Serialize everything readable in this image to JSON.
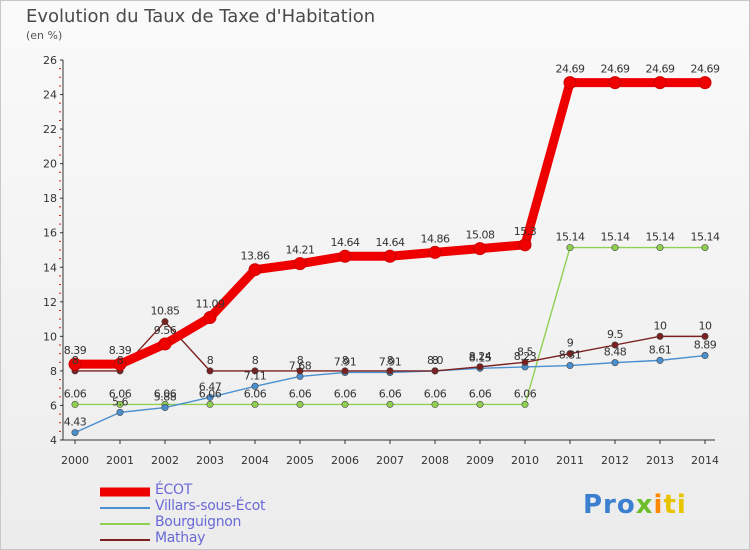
{
  "title": "Evolution du Taux de Taxe d'Habitation",
  "unit": "(en %)",
  "logo": {
    "p1": "Pro",
    "p2": "x",
    "p3": "i",
    "p4": "ti"
  },
  "chart_data": {
    "type": "line",
    "x": [
      "2000",
      "2001",
      "2002",
      "2003",
      "2004",
      "2005",
      "2006",
      "2007",
      "2008",
      "2009",
      "2010",
      "2011",
      "2012",
      "2013",
      "2014"
    ],
    "ylim": [
      4,
      26
    ],
    "yticks": [
      4,
      6,
      8,
      10,
      12,
      14,
      16,
      18,
      20,
      22,
      24,
      26
    ],
    "grid": false,
    "legend_position": "bottom-left",
    "series": [
      {
        "name": "ÉCOT",
        "color": "#ee0000",
        "values": [
          8.39,
          8.39,
          9.56,
          11.09,
          13.86,
          14.21,
          14.64,
          14.64,
          14.86,
          15.08,
          15.3,
          24.69,
          24.69,
          24.69,
          24.69
        ],
        "labels": [
          "8.39",
          "8.39",
          "9.56",
          "11.09",
          "13.86",
          "14.21",
          "14.64",
          "14.64",
          "14.86",
          "15.08",
          "15.3",
          "24.69",
          "24.69",
          "24.69",
          "24.69"
        ]
      },
      {
        "name": "Villars-sous-Écot",
        "color": "#4a90d0",
        "values": [
          4.43,
          5.6,
          5.88,
          6.47,
          7.11,
          7.68,
          7.91,
          7.91,
          8.0,
          8.15,
          8.23,
          8.31,
          8.48,
          8.61,
          8.89
        ],
        "labels": [
          "4.43",
          "5.6",
          "5.88",
          "6.47",
          "7.11",
          "7.68",
          "7.91",
          "7.91",
          "8.0",
          "8.15",
          "8.23",
          "8.31",
          "8.48",
          "8.61",
          "8.89"
        ]
      },
      {
        "name": "Bourguignon",
        "color": "#90d050",
        "values": [
          6.06,
          6.06,
          6.06,
          6.06,
          6.06,
          6.06,
          6.06,
          6.06,
          6.06,
          6.06,
          6.06,
          15.14,
          15.14,
          15.14,
          15.14
        ],
        "labels": [
          "6.06",
          "6.06",
          "6.06",
          "6.06",
          "6.06",
          "6.06",
          "6.06",
          "6.06",
          "6.06",
          "6.06",
          "6.06",
          "15.14",
          "15.14",
          "15.14",
          "15.14"
        ]
      },
      {
        "name": "Mathay",
        "color": "#7a2020",
        "values": [
          8,
          8,
          10.85,
          8,
          8,
          8,
          8,
          8,
          8,
          8.24,
          8.5,
          9,
          9.5,
          10,
          10
        ],
        "labels": [
          "8",
          "8",
          "10.85",
          "8",
          "8",
          "8",
          "8",
          "8",
          "8",
          "8.24",
          "8.5",
          "9",
          "9.5",
          "10",
          "10"
        ]
      }
    ]
  }
}
